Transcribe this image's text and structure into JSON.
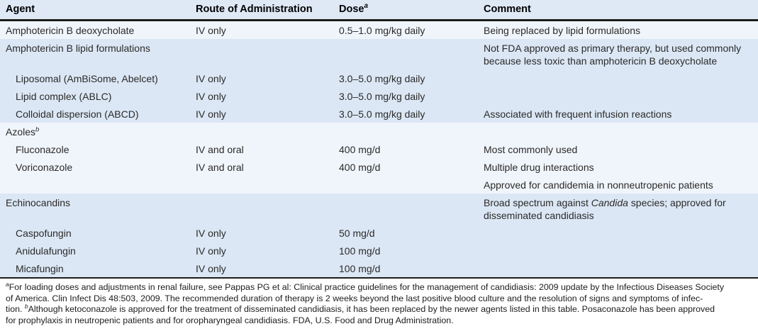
{
  "colors": {
    "band_blue": "#dbe7f5",
    "band_light": "#f0f5fc",
    "header_bg": "#dfe9f6",
    "rule": "#1d1d1b",
    "text": "#2b2a28"
  },
  "table": {
    "columns": [
      "Agent",
      "Route of Administration",
      "Dose^a",
      "Comment"
    ],
    "rows": [
      {
        "agent": "Amphotericin B deoxycholate",
        "indent": false,
        "route": "IV only",
        "dose": "0.5–1.0 mg/kg daily",
        "comment": "Being replaced by lipid formulations",
        "band": "light"
      },
      {
        "agent": "Amphotericin B lipid formulations",
        "indent": false,
        "route": "",
        "dose": "",
        "comment": "Not FDA approved as primary therapy, but used commonly because less toxic than amphotericin B deoxycholate",
        "band": "blue"
      },
      {
        "agent": "Liposomal (AmBiSome, Abelcet)",
        "indent": true,
        "route": "IV only",
        "dose": "3.0–5.0 mg/kg daily",
        "comment": "",
        "band": "blue"
      },
      {
        "agent": "Lipid complex (ABLC)",
        "indent": true,
        "route": "IV only",
        "dose": "3.0–5.0 mg/kg daily",
        "comment": "",
        "band": "blue"
      },
      {
        "agent": "Colloidal dispersion (ABCD)",
        "indent": true,
        "route": "IV only",
        "dose": "3.0–5.0 mg/kg daily",
        "comment": "Associated with frequent infusion reactions",
        "band": "blue"
      },
      {
        "agent": "Azoles^b",
        "indent": false,
        "route": "",
        "dose": "",
        "comment": "",
        "band": "light"
      },
      {
        "agent": "Fluconazole",
        "indent": true,
        "route": "IV and oral",
        "dose": "400 mg/d",
        "comment": "Most commonly used",
        "band": "light"
      },
      {
        "agent": "Voriconazole",
        "indent": true,
        "route": "IV and oral",
        "dose": "400 mg/d",
        "comment": "Multiple drug interactions",
        "band": "light"
      },
      {
        "agent": "",
        "indent": false,
        "route": "",
        "dose": "",
        "comment": "Approved for candidemia in nonneutropenic patients",
        "band": "light"
      },
      {
        "agent": "Echinocandins",
        "indent": false,
        "route": "",
        "dose": "",
        "comment": "Broad spectrum against *Candida* species; approved for disseminated candidiasis",
        "band": "blue"
      },
      {
        "agent": "Caspofungin",
        "indent": true,
        "route": "IV only",
        "dose": "50 mg/d",
        "comment": "",
        "band": "blue"
      },
      {
        "agent": "Anidulafungin",
        "indent": true,
        "route": "IV only",
        "dose": "100 mg/d",
        "comment": "",
        "band": "blue"
      },
      {
        "agent": "Micafungin",
        "indent": true,
        "route": "IV only",
        "dose": "100 mg/d",
        "comment": "",
        "band": "blue"
      }
    ]
  },
  "footnote": {
    "lines": [
      "^aFor loading doses and adjustments in renal failure, see Pappas PG et al: Clinical practice guidelines for the management of candidiasis: 2009 update by the Infectious Diseases Society",
      "of America. Clin Infect Dis 48:503, 2009. The recommended duration of therapy is 2 weeks beyond the last positive blood culture and the resolution of signs and symptoms of infec-",
      "tion.  ^bAlthough ketoconazole is approved for the treatment of disseminated candidiasis, it has been replaced by the newer agents listed in this table. Posaconazole has been approved",
      "for prophylaxis in neutropenic patients and for oropharyngeal candidiasis. FDA, U.S. Food and Drug Administration."
    ]
  }
}
